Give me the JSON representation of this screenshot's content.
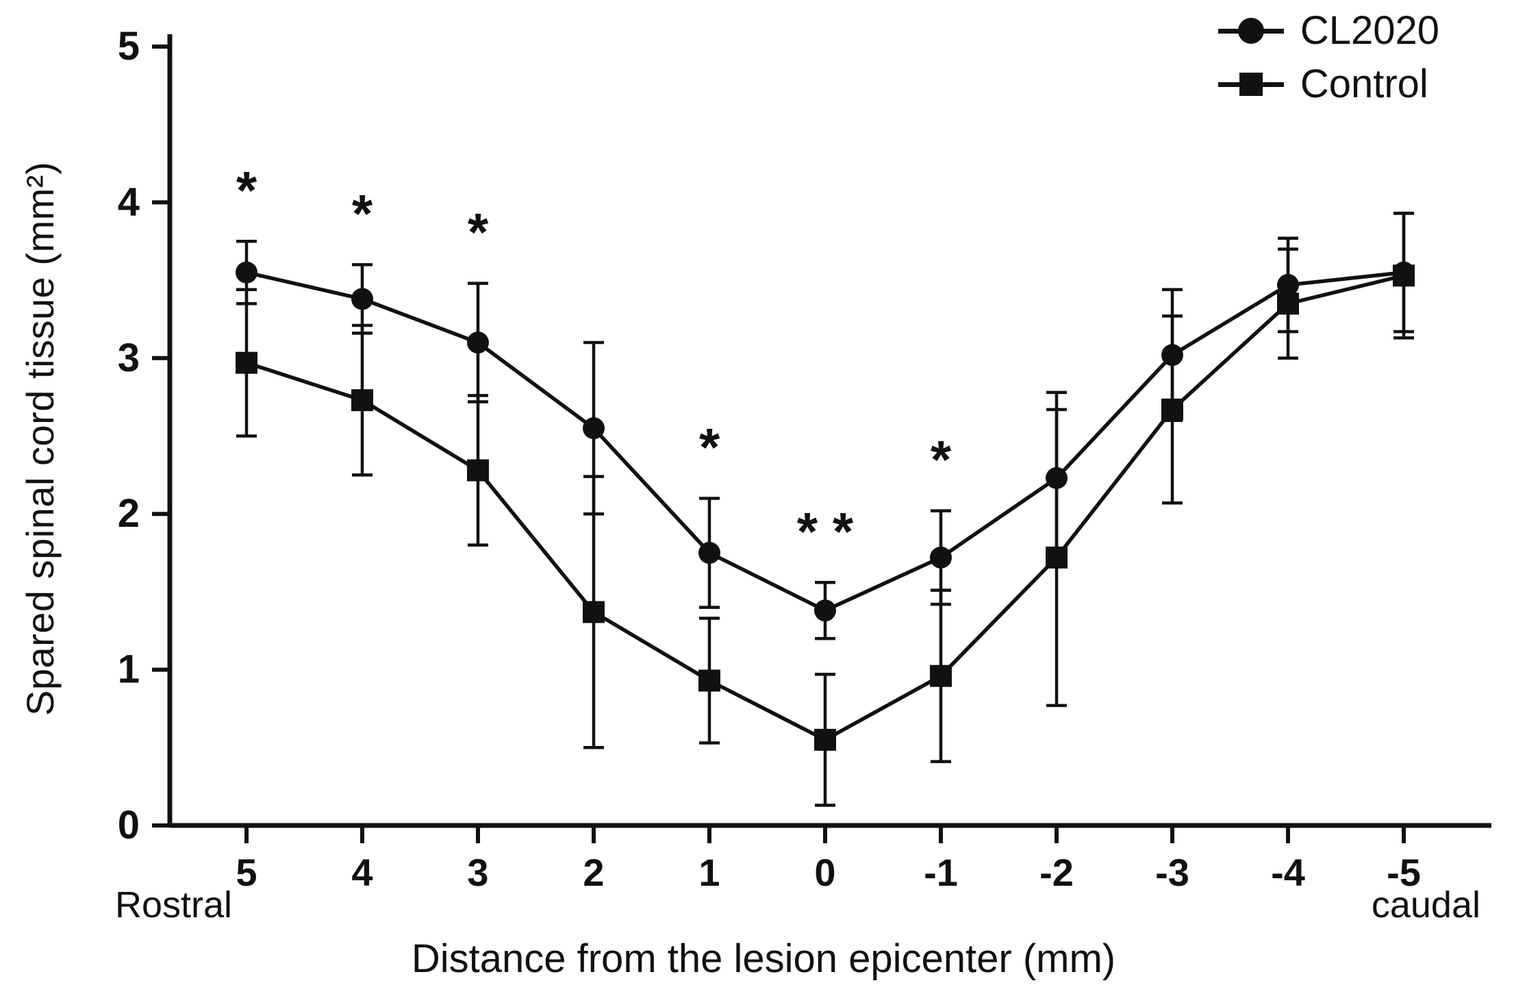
{
  "chart_data": {
    "type": "line",
    "title": "",
    "ylabel": "Spared spinal cord tissue (mm²)",
    "xlabel": "Distance from the lesion epicenter (mm)",
    "direction_labels": {
      "left": "Rostral",
      "right": "caudal"
    },
    "x_tick_labels": [
      "5",
      "4",
      "3",
      "2",
      "1",
      "0",
      "-1",
      "-2",
      "-3",
      "-4",
      "-5"
    ],
    "y_ticks": [
      0,
      1,
      2,
      3,
      4,
      5
    ],
    "ylim": [
      0,
      5
    ],
    "grid": false,
    "legend_position": "top-right",
    "colors": {
      "ink": "#111111",
      "background": "#ffffff"
    },
    "series": [
      {
        "name": "CL2020",
        "marker": "circle",
        "values": [
          3.55,
          3.38,
          3.1,
          2.55,
          1.75,
          1.38,
          1.72,
          2.23,
          3.02,
          3.47,
          3.55
        ],
        "errors": [
          0.2,
          0.22,
          0.38,
          0.55,
          0.35,
          0.18,
          0.3,
          0.55,
          0.42,
          0.3,
          0.38
        ]
      },
      {
        "name": "Control",
        "marker": "square",
        "values": [
          2.97,
          2.73,
          2.28,
          1.37,
          0.93,
          0.55,
          0.96,
          1.72,
          2.67,
          3.35,
          3.53
        ],
        "errors": [
          0.47,
          0.48,
          0.48,
          0.87,
          0.4,
          0.42,
          0.55,
          0.95,
          0.6,
          0.35,
          0.4
        ]
      }
    ],
    "significance": [
      {
        "x": "5",
        "x_index": 0,
        "label": "*"
      },
      {
        "x": "4",
        "x_index": 1,
        "label": "*"
      },
      {
        "x": "3",
        "x_index": 2,
        "label": "*"
      },
      {
        "x": "1",
        "x_index": 4,
        "label": "*"
      },
      {
        "x": "0",
        "x_index": 5,
        "label": "* *"
      },
      {
        "x": "-1",
        "x_index": 6,
        "label": "*"
      }
    ]
  }
}
